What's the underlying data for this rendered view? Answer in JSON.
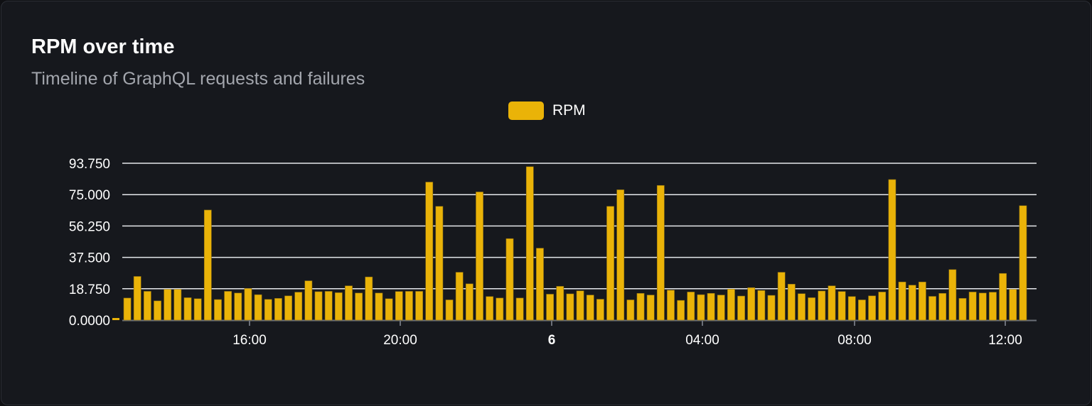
{
  "card": {
    "title": "RPM over time",
    "subtitle": "Timeline of GraphQL requests and failures"
  },
  "colors": {
    "bar": "#eab308",
    "grid": "#e5e7eb",
    "background": "#16181d"
  },
  "chart_data": {
    "type": "bar",
    "title": "RPM over time",
    "subtitle": "Timeline of GraphQL requests and failures",
    "legend": {
      "position": "top-center",
      "entries": [
        "RPM"
      ]
    },
    "series": [
      {
        "name": "RPM",
        "color": "#eab308",
        "values": [
          13.2,
          26.1,
          17.2,
          11.5,
          18.4,
          18.4,
          13.4,
          12.8,
          65.8,
          12.3,
          17.2,
          16.2,
          18.9,
          15.2,
          12.4,
          13.0,
          14.5,
          16.7,
          23.5,
          17.0,
          17.2,
          16.4,
          20.5,
          16.2,
          25.8,
          16.2,
          12.8,
          17.1,
          17.2,
          17.2,
          82.5,
          68.0,
          12.1,
          28.6,
          21.7,
          76.6,
          14.1,
          13.2,
          48.7,
          13.2,
          91.7,
          43.0,
          15.5,
          20.2,
          15.7,
          17.5,
          15.0,
          12.5,
          68.0,
          77.9,
          12.1,
          16.0,
          15.0,
          80.5,
          17.9,
          11.8,
          16.8,
          15.2,
          16.0,
          15.0,
          18.5,
          14.4,
          19.4,
          17.7,
          14.8,
          28.6,
          21.5,
          15.8,
          13.4,
          17.4,
          20.5,
          17.1,
          14.1,
          12.1,
          14.5,
          16.8,
          84.0,
          22.8,
          20.9,
          22.8,
          14.2,
          16.0,
          30.2,
          13.0,
          16.8,
          16.2,
          16.7,
          27.9,
          18.4,
          68.4
        ]
      }
    ],
    "y_ticks": [
      "0.0000",
      "18.750",
      "37.500",
      "56.250",
      "75.000",
      "93.750"
    ],
    "ylim": [
      0,
      93.75
    ],
    "x_ticks": [
      {
        "label": "16:00",
        "bold": false
      },
      {
        "label": "20:00",
        "bold": false
      },
      {
        "label": "6",
        "bold": true
      },
      {
        "label": "04:00",
        "bold": false
      },
      {
        "label": "08:00",
        "bold": false
      },
      {
        "label": "12:00",
        "bold": false
      }
    ],
    "grid": true,
    "xlabel": "",
    "ylabel": ""
  }
}
